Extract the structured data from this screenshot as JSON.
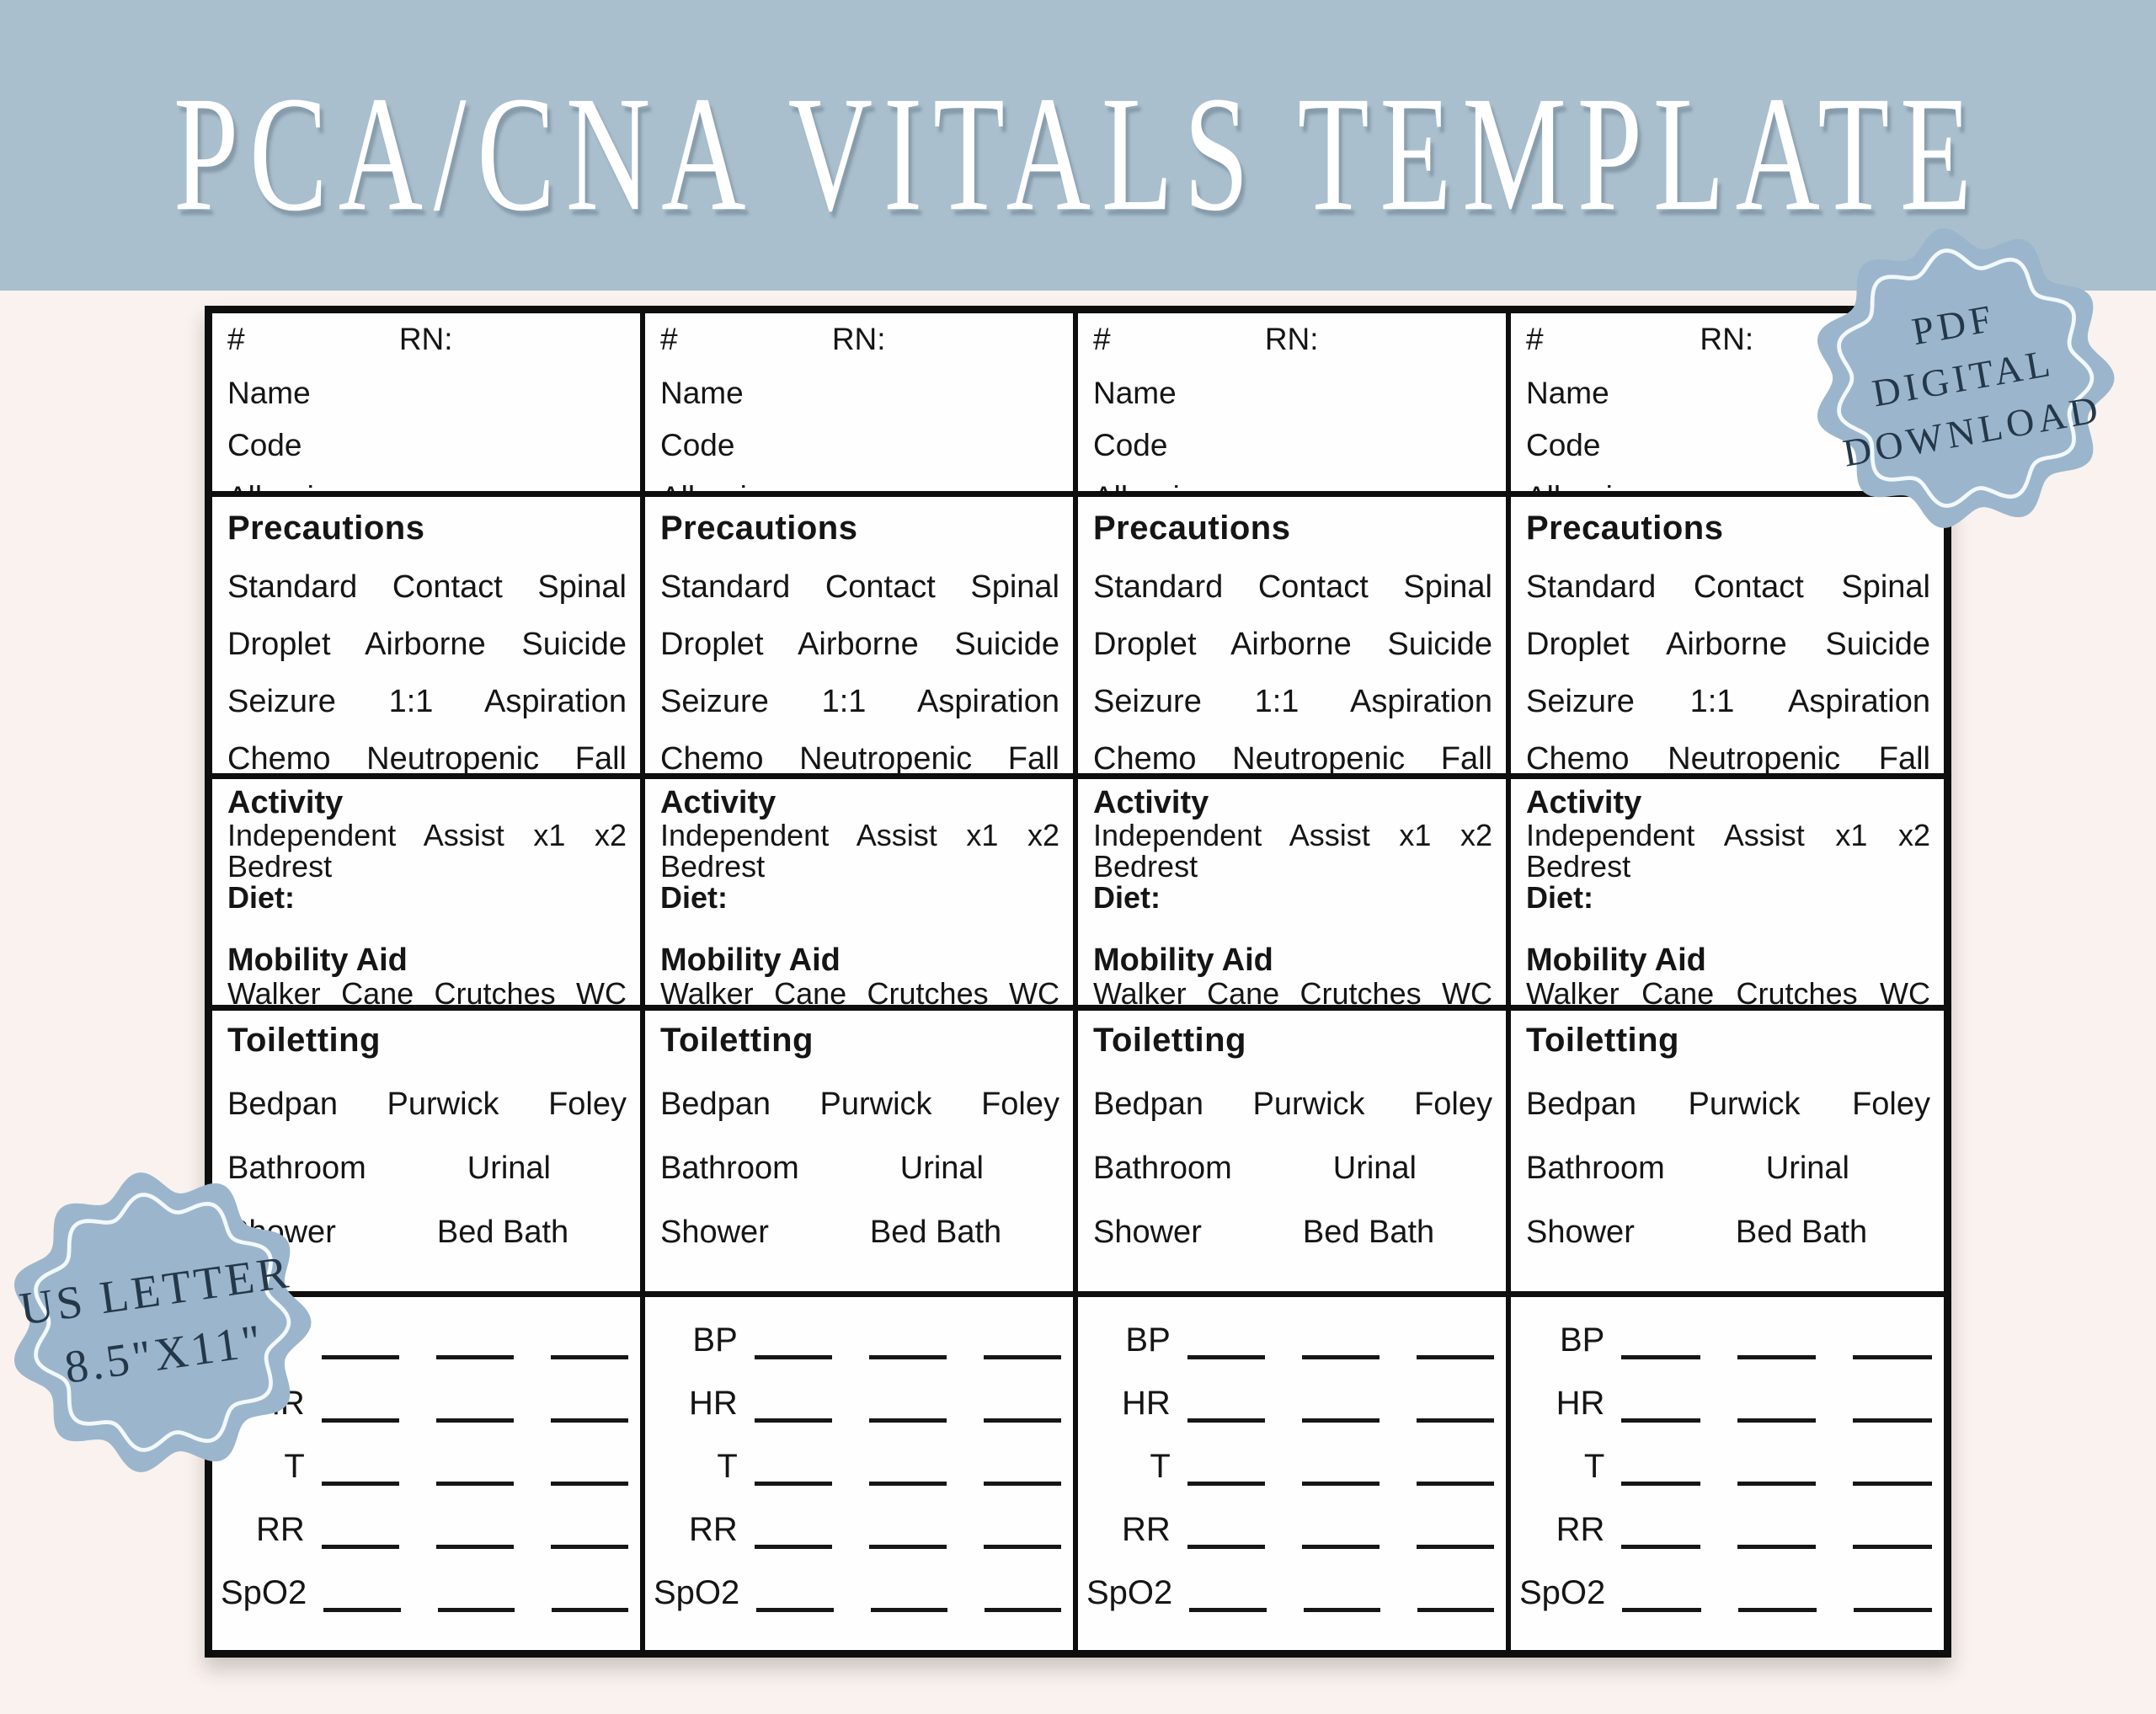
{
  "colors": {
    "banner_bg": "#a9bfce",
    "page_bg": "#faf2ee",
    "badge_fill": "#9bb6cc",
    "badge_ring": "#f2f8fb",
    "badge_text_color": "#24384a",
    "ink": "#151515"
  },
  "banner": {
    "title": "PCA/CNA VITALS TEMPLATE"
  },
  "badge_pdf": {
    "line1": "PDF",
    "line2": "DIGITAL",
    "line3": "DOWNLOAD"
  },
  "badge_us_letter": {
    "line1": "US LETTER",
    "line2": "8.5\"X11\""
  },
  "card": {
    "header": {
      "number": "#",
      "rn": "RN:",
      "name": "Name",
      "code": "Code",
      "allergies": "Allergies"
    },
    "precautions": {
      "title": "Precautions",
      "line1": "Standard Contact Spinal",
      "line2": "Droplet Airborne Suicide",
      "line3": "Seizure 1:1 Aspiration",
      "line4": "Chemo Neutropenic Fall"
    },
    "activity": {
      "title": "Activity",
      "line1": "Independent Assist x1 x2",
      "line2": "Bedrest",
      "diet": "Diet:",
      "mobility_title": "Mobility Aid",
      "mobility_line": "Walker Cane Crutches WC"
    },
    "toiletting": {
      "title": "Toiletting",
      "line1": "Bedpan Purwick Foley",
      "line2a": "Bathroom",
      "line2b": "Urinal",
      "line3a": "Shower",
      "line3b": "Bed Bath"
    },
    "vitals": {
      "bp": "BP",
      "hr": "HR",
      "t": "T",
      "rr": "RR",
      "spo2": "SpO2"
    }
  }
}
